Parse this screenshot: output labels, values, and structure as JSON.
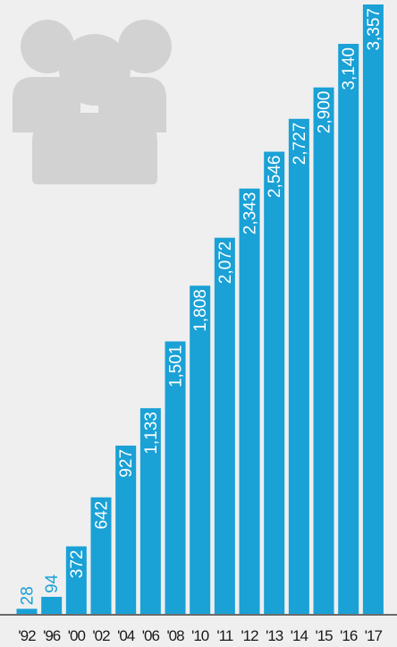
{
  "chart_data": {
    "type": "bar",
    "categories": [
      "'92",
      "'96",
      "'00",
      "'02",
      "'04",
      "'06",
      "'08",
      "'10",
      "'11",
      "'12",
      "'13",
      "'14",
      "'15",
      "'16",
      "'17"
    ],
    "values": [
      28,
      94,
      372,
      642,
      927,
      1133,
      1501,
      1808,
      2072,
      2343,
      2546,
      2727,
      2900,
      3140,
      3357
    ],
    "value_labels": [
      "28",
      "94",
      "372",
      "642",
      "927",
      "1,133",
      "1,501",
      "1,808",
      "2,072",
      "2,343",
      "2,546",
      "2,727",
      "2,900",
      "3,140",
      "3,357"
    ],
    "ylim": [
      0,
      3357
    ],
    "grid": false,
    "legend": "none"
  },
  "colors": {
    "background": "#efefef",
    "bar": "#1aa1d6",
    "label_on_bar": "#ffffff",
    "label_above_bar": "#1aa1d6",
    "axis_text": "#1a1a1a",
    "baseline": "#1a1a1a",
    "icon": "#d2d2d2"
  },
  "icon": {
    "name": "people-group-icon"
  }
}
